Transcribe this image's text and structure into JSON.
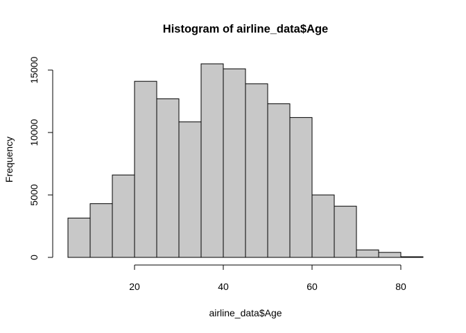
{
  "chart_data": {
    "type": "bar",
    "title": "Histogram of airline_data$Age",
    "xlabel": "airline_data$Age",
    "ylabel": "Frequency",
    "bin_edges": [
      5,
      10,
      15,
      20,
      25,
      30,
      35,
      40,
      45,
      50,
      55,
      60,
      65,
      70,
      75,
      80,
      85
    ],
    "values": [
      3150,
      4300,
      6600,
      14100,
      12700,
      10850,
      15500,
      15100,
      13900,
      12300,
      11200,
      5000,
      4100,
      600,
      400,
      50
    ],
    "xlim": [
      5,
      85
    ],
    "ylim": [
      0,
      15500
    ],
    "x_ticks": [
      20,
      40,
      60,
      80
    ],
    "y_ticks": [
      0,
      5000,
      10000,
      15000
    ],
    "grid": false,
    "bar_fill": "#c8c8c8",
    "bar_stroke": "#000000"
  }
}
